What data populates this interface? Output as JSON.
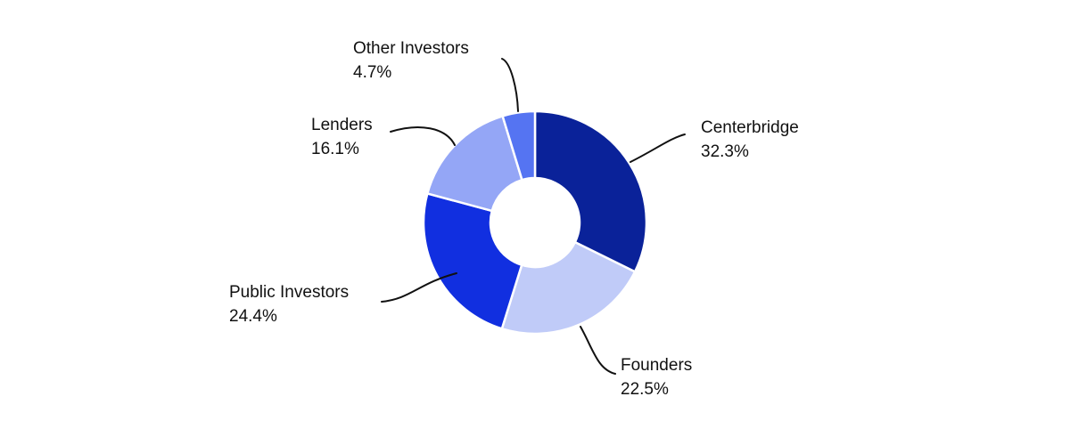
{
  "chart_data": {
    "type": "pie",
    "style": "donut",
    "title": "",
    "slices": [
      {
        "label": "Centerbridge",
        "value": 32.3,
        "display": "32.3%",
        "color": "#0a2299"
      },
      {
        "label": "Founders",
        "value": 22.5,
        "display": "22.5%",
        "color": "#c0cbf8"
      },
      {
        "label": "Public Investors",
        "value": 24.4,
        "display": "24.4%",
        "color": "#112fe0"
      },
      {
        "label": "Lenders",
        "value": 16.1,
        "display": "16.1%",
        "color": "#94a6f6"
      },
      {
        "label": "Other Investors",
        "value": 4.7,
        "display": "4.7%",
        "color": "#5574f2"
      }
    ],
    "start": "12 o'clock",
    "direction": "clockwise",
    "legend": "none"
  }
}
